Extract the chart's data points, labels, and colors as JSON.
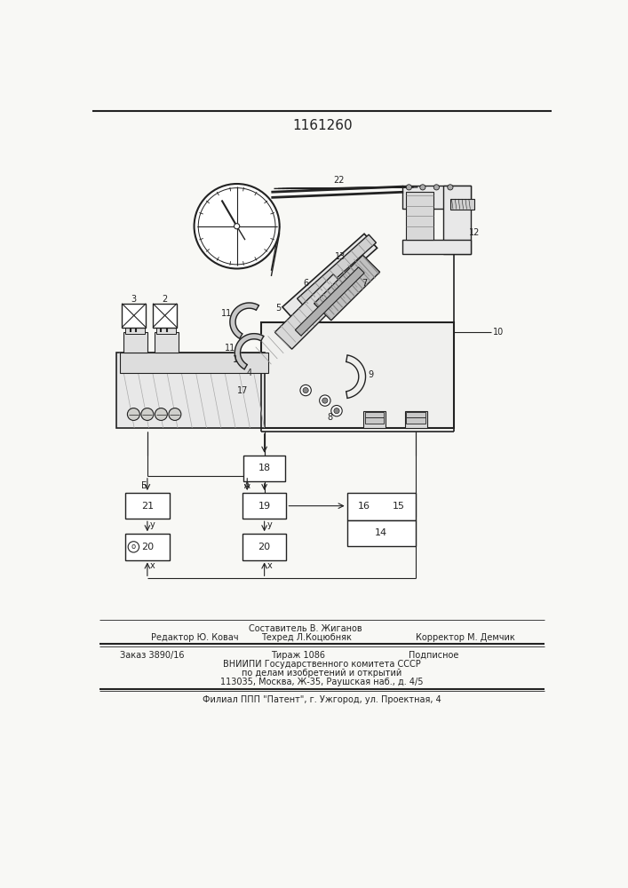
{
  "patent_number": "1161260",
  "bg_color": "#f8f8f5",
  "line_color": "#222222",
  "footer": {
    "editor": "Редактор Ю. Ковач",
    "composer": "Составитель В. Жиганов",
    "techred": "Техред Л.Коцюбняк",
    "corrector": "Корректор М. Демчик",
    "order": "Заказ 3890/16",
    "tirazh": "Тираж 1086",
    "podpisnoe": "Подписное",
    "org1": "ВНИИПИ Государственного комитета СССР",
    "org2": "по делам изобретений и открытий",
    "org3": "113035, Москва, Ж-35, Раушская наб., д. 4/5",
    "branch": "Филиал ППП \"Патент\", г. Ужгород, ул. Проектная, 4"
  }
}
